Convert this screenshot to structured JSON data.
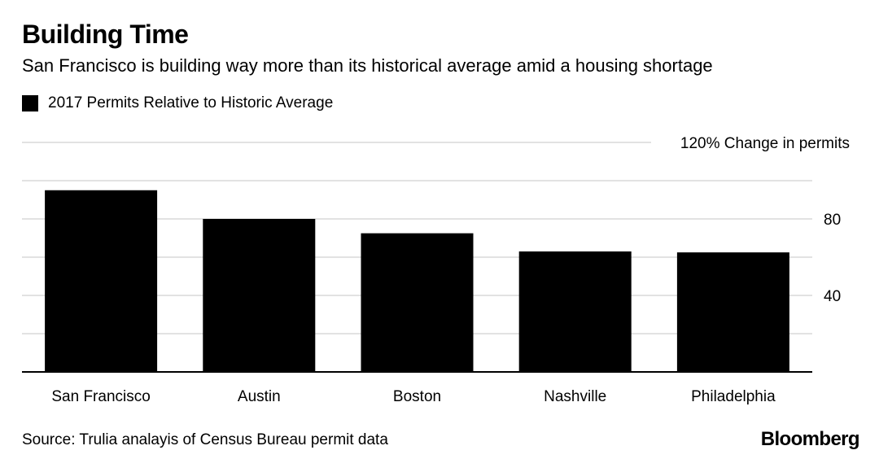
{
  "header": {
    "title": "Building Time",
    "subtitle": "San Francisco is building way more than its historical average amid a housing shortage"
  },
  "footer": {
    "source": "Source: Trulia analayis of Census Bureau permit data",
    "brand": "Bloomberg"
  },
  "colors": {
    "bar": "#000000",
    "grid": "#d9d9d9",
    "axis": "#000000",
    "text": "#000000"
  },
  "chart_data": {
    "type": "bar",
    "categories": [
      "San Francisco",
      "Austin",
      "Boston",
      "Nashville",
      "Philadelphia"
    ],
    "series": [
      {
        "name": "2017 Permits Relative to Historic Average",
        "values": [
          95,
          80,
          72.5,
          63,
          62.5
        ]
      }
    ],
    "ylim": [
      0,
      120
    ],
    "yticks": [
      0,
      20,
      40,
      60,
      80,
      100,
      120
    ],
    "ytick_labels": {
      "40": "40",
      "80": "80",
      "120": "120% Change in permits"
    },
    "xlabel": "",
    "ylabel": "",
    "grid": true,
    "legend": "top-left"
  }
}
